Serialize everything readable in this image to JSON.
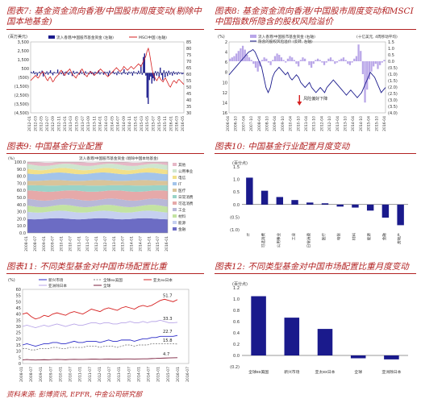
{
  "figures": {
    "fig7": {
      "title": "图表7: 基金资金流向香港/中国股市周度变动(剔除中国本地基金)"
    },
    "fig8": {
      "title": "图表8: 基金资金流向香港/中国股市周度变动和MSCI中国指数所隐含的股权风险溢价"
    },
    "fig9": {
      "title": "图表9: 中国基金行业配置"
    },
    "fig10": {
      "title": "图表10: 中国基金行业配置月度变动"
    },
    "fig11": {
      "title": "图表11: 不同类型基金对中国市场配置比重"
    },
    "fig12": {
      "title": "图表12: 不同类型基金对中国市场配置比重月度变动"
    }
  },
  "source": "资料来源: 彭博资讯, EPFR, 中金公司研究部",
  "colors": {
    "title_red": "#b22222",
    "navy": "#1a1a8c",
    "blue": "#2b2bc8",
    "red": "#d62020",
    "light_purple": "#b9a6e8",
    "grey": "#888888"
  },
  "chart_data": [
    {
      "id": "fig7",
      "type": "bar+line",
      "unit_left": "(百万美元)",
      "legend": [
        "流入香港/中国股市基金资金 (左轴)",
        "MSCI中国 (右轴)"
      ],
      "ylim_left": [
        -4500,
        3500
      ],
      "yticks_left": [
        "3,500",
        "2,500",
        "1,500",
        "500",
        "(500)",
        "(1,500)",
        "(2,500)",
        "(3,500)",
        "(4,500)"
      ],
      "ylim_right": [
        30,
        85
      ],
      "yticks_right": [
        "85",
        "80",
        "75",
        "70",
        "65",
        "60",
        "55",
        "50",
        "45",
        "40",
        "35",
        "30"
      ],
      "x_ticks": [
        "2012-01",
        "2012-03",
        "2012-05",
        "2012-07",
        "2012-09",
        "2012-11",
        "2013-01",
        "2013-03",
        "2013-05",
        "2013-07",
        "2013-09",
        "2013-11",
        "2014-01",
        "2014-03",
        "2014-05",
        "2014-07",
        "2014-09",
        "2014-11",
        "2015-01",
        "2015-03",
        "2015-05",
        "2015-07",
        "2015-09",
        "2015-11",
        "2016-01",
        "2016-03",
        "2016-05"
      ],
      "flows": [
        120,
        -60,
        210,
        -150,
        80,
        -320,
        40,
        150,
        -90,
        260,
        -400,
        60,
        -120,
        180,
        -200,
        90,
        300,
        -80,
        -260,
        120,
        40,
        -50,
        380,
        -180,
        70,
        -140,
        200,
        -300,
        90,
        160,
        -70,
        -210,
        110,
        60,
        -350,
        240,
        -120,
        80,
        150,
        -60,
        -190,
        300,
        -110,
        70,
        -240,
        190,
        -80,
        50,
        -160,
        220,
        -130,
        90,
        -280,
        140,
        60,
        -90,
        310,
        -170,
        80,
        -40,
        -200,
        150,
        -60,
        120,
        -330,
        260,
        -90,
        70,
        180,
        -140,
        60,
        -250,
        200,
        -100,
        40,
        -180,
        90,
        420,
        -120,
        60,
        -220,
        150,
        -80,
        110,
        -300,
        190,
        -60,
        80,
        -150,
        250,
        -110,
        900,
        -200,
        1800,
        2200,
        -300,
        -2800,
        -3500,
        -800,
        -400,
        -1200,
        -600,
        -900,
        200,
        -300,
        150,
        -450,
        600,
        -250,
        -800,
        300,
        -500,
        150,
        -350,
        250,
        -200,
        100,
        -300,
        180,
        -150,
        80,
        -200,
        120,
        -100,
        60,
        -150,
        -90
      ],
      "msci": [
        55,
        56,
        57,
        58,
        59,
        58,
        57,
        58,
        60,
        61,
        62,
        60,
        58,
        56,
        55,
        57,
        58,
        56,
        54,
        55,
        57,
        58,
        59,
        60,
        62,
        63,
        61,
        60,
        59,
        61,
        62,
        63,
        64,
        62,
        60,
        59,
        58,
        57,
        59,
        60,
        61,
        63,
        64,
        62,
        60,
        59,
        58,
        60,
        61,
        62,
        61,
        60,
        59,
        60,
        61,
        62,
        63,
        64,
        63,
        62,
        61,
        60,
        59,
        58,
        59,
        60,
        61,
        62,
        63,
        64,
        65,
        64,
        63,
        62,
        63,
        64,
        66,
        65,
        64,
        63,
        64,
        65,
        66,
        65,
        64,
        65,
        66,
        67,
        68,
        67,
        66,
        68,
        70,
        72,
        74,
        78,
        80,
        76,
        70,
        64,
        60,
        58,
        56,
        55,
        57,
        58,
        56,
        55,
        54,
        56,
        57,
        55,
        53,
        51,
        50,
        52,
        54,
        55,
        54,
        53,
        55,
        56,
        55,
        54,
        53,
        52
      ],
      "y_data_range": [
        -4500,
        3500
      ]
    },
    {
      "id": "fig8",
      "type": "bar+line",
      "legend": [
        "流入香港/中国股市基金资金 (右轴)",
        "隐含的股权风险溢价 (反转, 左轴)"
      ],
      "unit_right": "(十亿美元, 4周移动平均)",
      "ylim_left": [
        16,
        2
      ],
      "yticks_left": [
        "2",
        "4",
        "6",
        "8",
        "10",
        "12",
        "14",
        "16"
      ],
      "ylim_right": [
        -4.0,
        1.5
      ],
      "yticks_right": [
        "1.5",
        "1.0",
        "0.5",
        "0.0",
        "(0.5)",
        "(1.0)",
        "(1.5)",
        "(2.0)",
        "(2.5)",
        "(3.0)",
        "(3.5)",
        "(4.0)"
      ],
      "annotation": "风险偏好下降",
      "x_ticks": [
        "2006-04",
        "2006-10",
        "2007-04",
        "2007-10",
        "2008-04",
        "2008-10",
        "2009-04",
        "2009-10",
        "2010-04",
        "2010-10",
        "2011-04",
        "2011-10",
        "2012-04",
        "2012-10",
        "2013-04",
        "2013-10",
        "2014-04",
        "2014-10",
        "2015-04",
        "2015-10",
        "2016-04"
      ],
      "erp": [
        8.5,
        8,
        7.5,
        7,
        6.5,
        6,
        5.5,
        5,
        4.5,
        4,
        3.8,
        3.5,
        4,
        5,
        6,
        7,
        9,
        11,
        12,
        11,
        9,
        8,
        7.5,
        7,
        7.5,
        8,
        8.5,
        8,
        9,
        9.5,
        9,
        8.5,
        9,
        10,
        10.5,
        11,
        10.5,
        10,
        11,
        11.5,
        12,
        11.5,
        11,
        11.5,
        12,
        11,
        10.5,
        10,
        9.5,
        10,
        10.5,
        11,
        11.5,
        12,
        12.5,
        12,
        11.5,
        12,
        12.5,
        13,
        12.5,
        12,
        11,
        10,
        9,
        8,
        8.5,
        9,
        10,
        11,
        12,
        11.5,
        11
      ],
      "flows": [
        0.2,
        0.3,
        0.4,
        0.6,
        0.8,
        1.0,
        1.2,
        0.9,
        0.5,
        0.3,
        0.1,
        -0.2,
        -0.5,
        -0.8,
        -0.4,
        0.1,
        0.3,
        0.2,
        -0.1,
        -0.3,
        0.1,
        0.4,
        0.6,
        0.5,
        0.3,
        0.1,
        -0.1,
        0.2,
        0.4,
        0.3,
        0.1,
        -0.2,
        -0.4,
        0.1,
        0.3,
        0.2,
        0.0,
        -0.3,
        -0.5,
        -0.2,
        0.1,
        0.2,
        0.1,
        -0.1,
        -0.3,
        -0.1,
        0.2,
        0.3,
        0.1,
        -0.2,
        -0.1,
        0.1,
        0.2,
        0.3,
        0.1,
        -0.2,
        -0.3,
        -0.1,
        0.2,
        0.4,
        1.3,
        0.8,
        -1.0,
        -3.2,
        -2.2,
        -1.4,
        -0.8,
        -0.4,
        -0.2,
        -0.6,
        -0.3,
        -0.1,
        0.1
      ]
    },
    {
      "id": "fig9",
      "type": "area",
      "legend_title": "流入香港/中国股市基金资金 (剔除中国本地基金)",
      "ylim": [
        0,
        100
      ],
      "yticks": [
        "0.0",
        "10.0",
        "20.0",
        "30.0",
        "40.0",
        "50.0",
        "60.0",
        "70.0",
        "80.0",
        "90.0",
        "100.0"
      ],
      "x_ticks": [
        "2008-01",
        "2008-07",
        "2009-01",
        "2009-07",
        "2010-01",
        "2010-07",
        "2011-01",
        "2011-07",
        "2012-01",
        "2012-07",
        "2013-01",
        "2013-07",
        "2014-01",
        "2014-07",
        "2015-01",
        "2015-07",
        "2016-01"
      ],
      "series_labels": [
        "其他",
        "公用事业",
        "电信",
        "IT",
        "医疗",
        "日常消费",
        "可选消费",
        "工业",
        "材料",
        "能源",
        "金融"
      ],
      "series_colors": [
        "#e6b7c6",
        "#cfe6cf",
        "#f2e08a",
        "#a3c4ea",
        "#d9c49a",
        "#9ad3c8",
        "#e6a9a9",
        "#b8b8d8",
        "#c3e3a2",
        "#c6d0f0",
        "#6c6cc4"
      ]
    },
    {
      "id": "fig10",
      "type": "bar",
      "unit": "(百分点)",
      "categories": [
        "IT",
        "可选消费",
        "公用事业",
        "工业",
        "日常消费",
        "医疗",
        "电信",
        "材料",
        "能源",
        "金融",
        "房地产"
      ],
      "values": [
        1.07,
        0.55,
        0.3,
        0.18,
        0.08,
        0.05,
        -0.08,
        -0.12,
        -0.24,
        -0.52,
        -0.82
      ],
      "ylim": [
        -1.0,
        1.5
      ],
      "yticks": [
        "1.5",
        "1.0",
        "0.5",
        "0.0",
        "(0.5)",
        "(1.0)"
      ]
    },
    {
      "id": "fig11",
      "type": "line",
      "unit": "(%)",
      "legend": [
        "新兴市场",
        "全球ex美国",
        "亚太ex日本",
        "亚洲除日本",
        "全球"
      ],
      "ylim": [
        0,
        60
      ],
      "yticks": [
        "0",
        "5",
        "10",
        "15",
        "20",
        "25",
        "30",
        "35",
        "40",
        "45",
        "50",
        "55",
        "60"
      ],
      "x_ticks": [
        "2008-01",
        "2008-07",
        "2009-01",
        "2009-07",
        "2010-01",
        "2010-07",
        "2011-01",
        "2011-07",
        "2012-01",
        "2012-07",
        "2013-01",
        "2013-07",
        "2014-01",
        "2014-07",
        "2015-01",
        "2015-07",
        "2016-01",
        "2016-07"
      ],
      "end_labels": [
        "51.7",
        "33.3",
        "22.7",
        "15.8",
        "4.7"
      ],
      "series": [
        {
          "name": "亚太ex日本",
          "values": [
            40,
            41,
            38,
            36,
            37,
            39,
            38,
            40,
            41,
            40,
            39,
            41,
            42,
            41,
            40,
            42,
            44,
            43,
            42,
            44,
            45,
            44,
            43,
            45,
            46,
            45,
            44,
            46,
            47,
            46,
            47,
            49,
            51,
            52,
            51,
            50,
            51.7
          ]
        },
        {
          "name": "亚洲除日本",
          "values": [
            30,
            31,
            30,
            29,
            30,
            31,
            30,
            31,
            32,
            31,
            30,
            31,
            32,
            31,
            31,
            32,
            33,
            33,
            32,
            33,
            33,
            32,
            32,
            33,
            33,
            34,
            33,
            33,
            34,
            33,
            34,
            34,
            35,
            34,
            33,
            33,
            33.3
          ]
        },
        {
          "name": "新兴市场",
          "values": [
            15,
            16,
            15,
            14,
            15,
            16,
            16,
            17,
            17,
            16,
            16,
            17,
            18,
            17,
            17,
            18,
            18,
            18,
            17,
            18,
            19,
            18,
            18,
            19,
            19,
            19,
            18,
            19,
            20,
            20,
            21,
            21,
            22,
            22,
            22,
            22,
            22.7
          ]
        },
        {
          "name": "全球ex美国",
          "values": [
            12,
            12,
            11,
            11,
            12,
            12,
            12,
            13,
            13,
            12,
            12,
            13,
            13,
            13,
            13,
            14,
            14,
            14,
            13,
            14,
            14,
            14,
            13,
            14,
            15,
            15,
            14,
            15,
            15,
            15,
            16,
            16,
            16,
            16,
            16,
            16,
            15.8
          ]
        },
        {
          "name": "全球",
          "values": [
            3,
            3.2,
            3,
            2.8,
            3,
            3.1,
            3,
            3.2,
            3.3,
            3.2,
            3.1,
            3.3,
            3.4,
            3.3,
            3.3,
            3.4,
            3.5,
            3.5,
            3.4,
            3.5,
            3.6,
            3.5,
            3.5,
            3.6,
            3.7,
            3.7,
            3.6,
            3.7,
            3.8,
            3.8,
            4,
            4.1,
            4.3,
            4.4,
            4.5,
            4.6,
            4.7
          ]
        }
      ]
    },
    {
      "id": "fig12",
      "type": "bar",
      "unit": "(百分点)",
      "categories": [
        "全球ex美国",
        "新兴市场",
        "亚太ex日本",
        "全球",
        "亚洲除日本"
      ],
      "values": [
        1.05,
        0.67,
        0.47,
        -0.05,
        -0.07
      ],
      "ylim": [
        -0.2,
        1.2
      ],
      "yticks": [
        "1.2",
        "1.0",
        "0.8",
        "0.6",
        "0.4",
        "0.2",
        "0.0",
        "(0.2)"
      ]
    }
  ]
}
